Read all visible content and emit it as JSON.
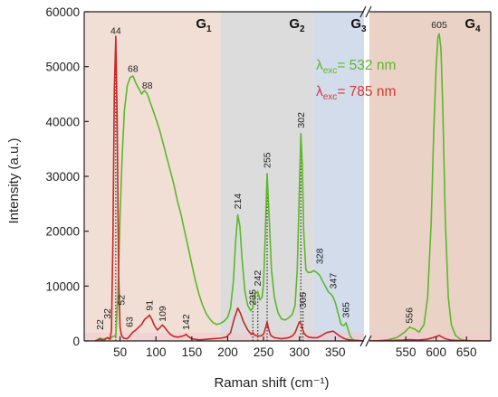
{
  "chart_data": {
    "type": "line",
    "xlabel": "Raman shift (cm⁻¹)",
    "ylabel": "Intensity (a.u.)",
    "ylim": [
      0,
      60000
    ],
    "y_ticks": [
      0,
      10000,
      20000,
      30000,
      40000,
      50000,
      60000
    ],
    "x_break": true,
    "x_segments": [
      {
        "xlim": [
          0,
          390
        ],
        "ticks": [
          50,
          100,
          150,
          200,
          250,
          300,
          350
        ]
      },
      {
        "xlim": [
          490,
          690
        ],
        "ticks": [
          550,
          600,
          650
        ]
      }
    ],
    "regions": [
      {
        "label": "G",
        "sub": "1",
        "x": [
          0,
          190
        ],
        "color": "#f1dfd6"
      },
      {
        "label": "G",
        "sub": "2",
        "x": [
          190,
          320
        ],
        "color": "#dcdcdc"
      },
      {
        "label": "G",
        "sub": "3",
        "x": [
          320,
          390
        ],
        "color": "#d3dceb"
      },
      {
        "label": "G",
        "sub": "4",
        "x": [
          490,
          690
        ],
        "color": "#ead3c6"
      }
    ],
    "legend": {
      "placement": "top-right",
      "entries": [
        {
          "symbol": "λ",
          "sub": "exc",
          "text": "= 532 nm",
          "color": "#5cb82a"
        },
        {
          "symbol": "λ",
          "sub": "exc",
          "text": "= 785 nm",
          "color": "#d6382f"
        }
      ]
    },
    "series": [
      {
        "color": "#5cb82a",
        "x": [
          15,
          22,
          28,
          32,
          36,
          40,
          44,
          47,
          50,
          53,
          56,
          60,
          64,
          68,
          72,
          76,
          80,
          84,
          88,
          92,
          96,
          100,
          105,
          110,
          115,
          120,
          125,
          130,
          135,
          140,
          145,
          150,
          155,
          160,
          165,
          170,
          175,
          180,
          185,
          190,
          195,
          200,
          204,
          208,
          211,
          214,
          217,
          220,
          224,
          228,
          232,
          235,
          238,
          242,
          245,
          248,
          250,
          252,
          255,
          258,
          261,
          265,
          270,
          275,
          280,
          285,
          290,
          294,
          297,
          300,
          302,
          304,
          306,
          309,
          312,
          316,
          320,
          324,
          328,
          332,
          336,
          340,
          344,
          347,
          350,
          354,
          358,
          362,
          365,
          368,
          371,
          374,
          378,
          382,
          386,
          390,
          490,
          505,
          520,
          535,
          548,
          556,
          564,
          572,
          580,
          586,
          592,
          596,
          600,
          603,
          605,
          608,
          611,
          615,
          620,
          625,
          632,
          640,
          650,
          665,
          680,
          690
        ],
        "values": [
          0,
          500,
          300,
          600,
          500,
          800,
          1000,
          8000,
          23000,
          34000,
          42000,
          46500,
          48000,
          48300,
          47000,
          46000,
          45000,
          45700,
          45000,
          43500,
          42000,
          40500,
          38500,
          36000,
          33500,
          31000,
          28500,
          25500,
          23000,
          20000,
          17000,
          14000,
          11000,
          8500,
          6500,
          5000,
          4000,
          3300,
          3000,
          3200,
          3600,
          4300,
          6000,
          11000,
          18000,
          23000,
          21000,
          15000,
          9000,
          6500,
          5500,
          6000,
          8500,
          9000,
          7500,
          8000,
          10500,
          18000,
          30500,
          22000,
          13000,
          8000,
          5200,
          4000,
          3800,
          4200,
          4800,
          6500,
          13000,
          28000,
          37800,
          32000,
          20000,
          13000,
          12500,
          12500,
          12800,
          12500,
          12000,
          11000,
          10000,
          9000,
          8500,
          8000,
          7000,
          5000,
          3000,
          2800,
          3300,
          2000,
          800,
          300,
          100,
          50,
          0,
          0,
          0,
          50,
          200,
          600,
          1600,
          2500,
          2200,
          1600,
          3000,
          8000,
          22000,
          38000,
          50000,
          55500,
          56000,
          53000,
          42000,
          22000,
          8000,
          3000,
          1000,
          300,
          100,
          0,
          0,
          0
        ]
      },
      {
        "color": "#c62828",
        "x": [
          15,
          20,
          22,
          25,
          28,
          32,
          36,
          38,
          40,
          42,
          44,
          46,
          48,
          50,
          52,
          55,
          60,
          63,
          67,
          72,
          76,
          80,
          84,
          88,
          91,
          94,
          98,
          102,
          106,
          109,
          112,
          116,
          120,
          125,
          130,
          135,
          140,
          142,
          145,
          150,
          160,
          170,
          180,
          190,
          198,
          204,
          209,
          214,
          218,
          222,
          228,
          233,
          235,
          238,
          242,
          246,
          250,
          253,
          255,
          257,
          260,
          265,
          270,
          275,
          280,
          285,
          290,
          294,
          297,
          300,
          302,
          304,
          306,
          309,
          313,
          318,
          325,
          330,
          336,
          340,
          344,
          347,
          350,
          355,
          360,
          365,
          370,
          375,
          380,
          385,
          390,
          490,
          520,
          545,
          556,
          570,
          585,
          595,
          603,
          605,
          608,
          615,
          625,
          640,
          660,
          690
        ],
        "values": [
          0,
          150,
          400,
          100,
          200,
          600,
          300,
          2000,
          18000,
          46000,
          55500,
          40000,
          12000,
          2500,
          1000,
          500,
          400,
          800,
          1500,
          2000,
          2500,
          3000,
          3900,
          4300,
          4700,
          4000,
          2800,
          2000,
          2500,
          2900,
          2500,
          1800,
          1200,
          800,
          700,
          800,
          1000,
          1200,
          800,
          400,
          200,
          300,
          400,
          500,
          700,
          1500,
          4000,
          6000,
          5000,
          3500,
          2000,
          1200,
          1500,
          1000,
          900,
          900,
          1200,
          2500,
          3500,
          2200,
          1000,
          600,
          500,
          400,
          500,
          600,
          900,
          1500,
          2500,
          3500,
          3200,
          2300,
          1500,
          1000,
          700,
          600,
          600,
          900,
          1400,
          1600,
          1700,
          1800,
          1500,
          1000,
          600,
          300,
          200,
          100,
          100,
          50,
          0,
          0,
          50,
          150,
          250,
          150,
          300,
          600,
          900,
          1000,
          800,
          400,
          150,
          50,
          0,
          0
        ]
      }
    ],
    "annotations": [
      {
        "text": "44",
        "x": 44,
        "y": 56000,
        "angle": 0
      },
      {
        "text": "68",
        "x": 68,
        "y": 49000,
        "angle": 0
      },
      {
        "text": "88",
        "x": 88,
        "y": 46000,
        "angle": 0
      },
      {
        "text": "22",
        "x": 22,
        "y": 2000,
        "angle": -90
      },
      {
        "text": "32",
        "x": 32,
        "y": 4000,
        "angle": -90
      },
      {
        "text": "52",
        "x": 52,
        "y": 6500,
        "angle": -90
      },
      {
        "text": "63",
        "x": 63,
        "y": 2500,
        "angle": -90
      },
      {
        "text": "91",
        "x": 91,
        "y": 5500,
        "angle": -90
      },
      {
        "text": "109",
        "x": 109,
        "y": 3500,
        "angle": -90
      },
      {
        "text": "142",
        "x": 142,
        "y": 2000,
        "angle": -90
      },
      {
        "text": "214",
        "x": 214,
        "y": 24000,
        "angle": -90
      },
      {
        "text": "235",
        "x": 235,
        "y": 6500,
        "angle": -90
      },
      {
        "text": "242",
        "x": 242,
        "y": 10000,
        "angle": -90
      },
      {
        "text": "255",
        "x": 255,
        "y": 31500,
        "angle": -90
      },
      {
        "text": "302",
        "x": 302,
        "y": 38800,
        "angle": -90
      },
      {
        "text": "305",
        "x": 305,
        "y": 6000,
        "angle": -90
      },
      {
        "text": "328",
        "x": 328,
        "y": 14000,
        "angle": -90
      },
      {
        "text": "347",
        "x": 347,
        "y": 9500,
        "angle": -90
      },
      {
        "text": "365",
        "x": 365,
        "y": 4200,
        "angle": -90
      },
      {
        "text": "556",
        "x": 556,
        "y": 3200,
        "angle": -90
      },
      {
        "text": "605",
        "x": 605,
        "y": 57000,
        "angle": 0
      }
    ],
    "dotted_markers": [
      44,
      235,
      242,
      255,
      302,
      305
    ]
  }
}
